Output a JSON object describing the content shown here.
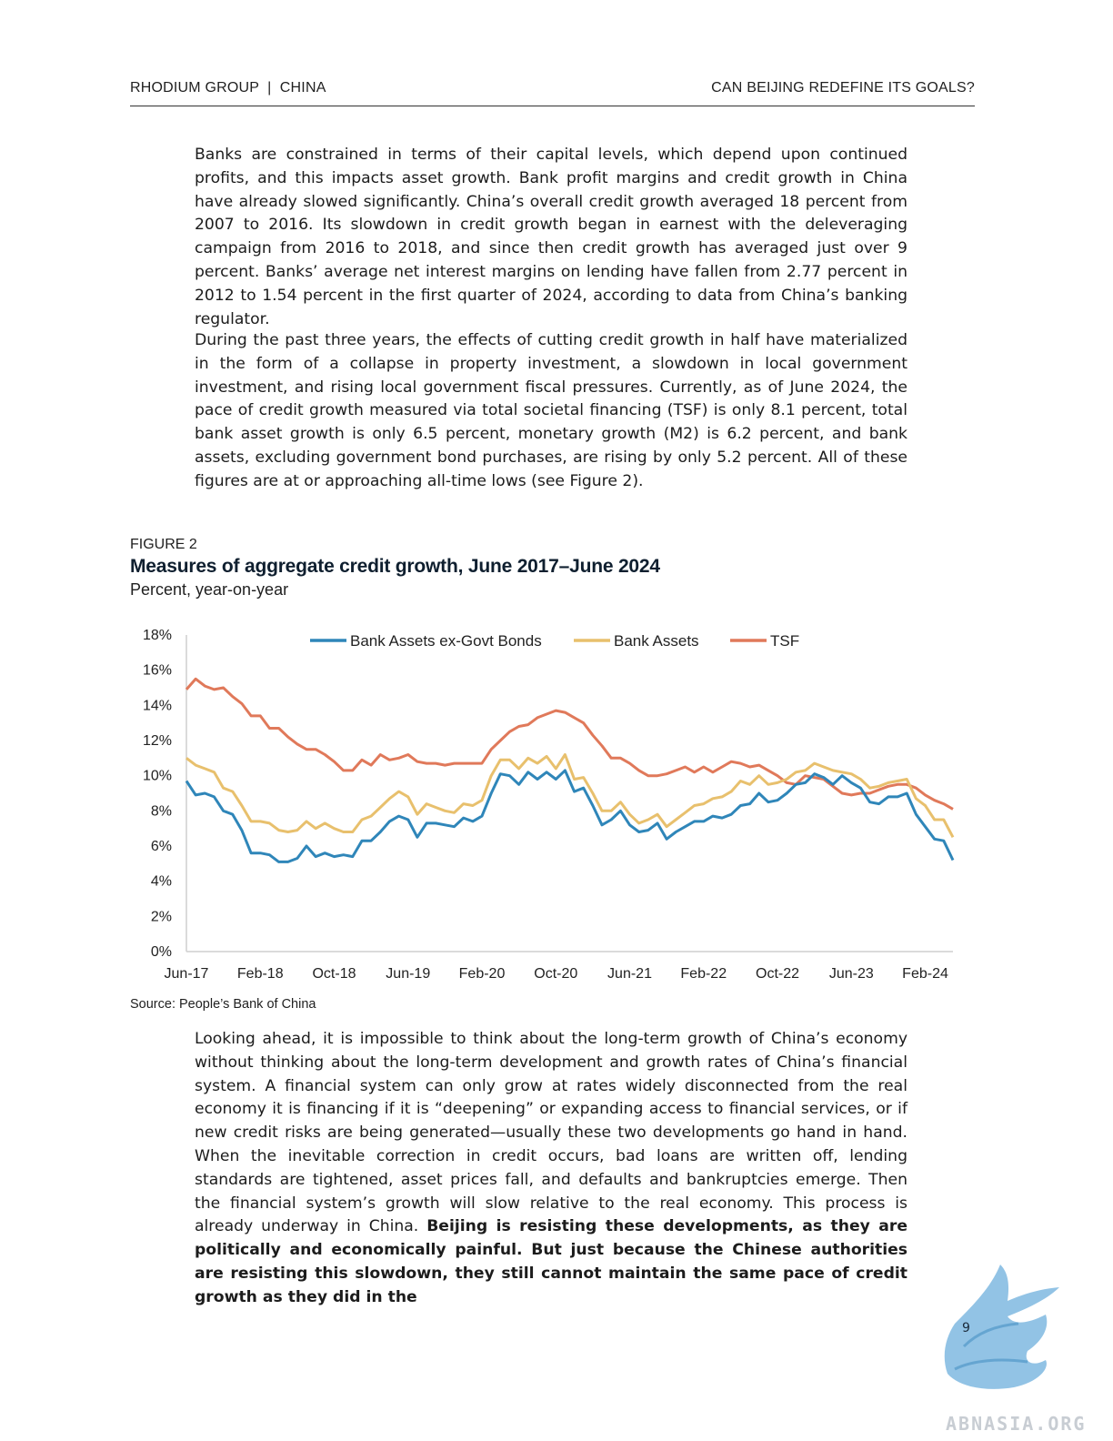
{
  "header": {
    "left": "RHODIUM GROUP  |  CHINA",
    "right": "CAN BEIJING REDEFINE ITS GOALS?"
  },
  "paragraphs": {
    "p1": "Banks are constrained in terms of their capital levels, which depend upon continued profits, and this impacts asset growth. Bank profit margins and credit growth in China have already slowed significantly. China’s overall credit growth averaged 18 percent from 2007 to 2016. Its slowdown in credit growth began in earnest with the deleveraging campaign from 2016 to 2018, and since then credit growth has averaged just over 9 percent. Banks’ average net interest margins on lending have fallen from 2.77 percent in 2012 to 1.54 percent in the first quarter of 2024, according to data from China’s banking regulator.",
    "p2": "During the past three years, the effects of cutting credit growth in half have materialized in the form of a collapse in property investment, a slowdown in local government investment, and rising local government fiscal pressures. Currently, as of June 2024, the pace of credit growth measured via total societal financing (TSF) is only 8.1 percent, total bank asset growth is only 6.5 percent, monetary growth (M2) is 6.2 percent, and bank assets, excluding government bond purchases, are rising by only 5.2 percent.  All of these figures are at or approaching all-time lows (see Figure 2).",
    "p3_normal": "Looking ahead, it is impossible to think about the long-term growth of China’s economy without thinking about the long-term development and growth rates of China’s financial system. A financial system can only grow at rates widely disconnected from the real economy it is financing if it is “deepening” or expanding access to financial services, or if new credit risks are being generated—usually these two developments go hand in hand. When the inevitable correction in credit occurs, bad loans are written off, lending standards are tightened, asset prices fall, and defaults and bankruptcies emerge. Then the financial system’s growth will slow relative to the real economy. This process is already underway in China. ",
    "p3_bold": "Beijing is resisting these developments, as they are politically and economically painful. But just because the Chinese authorities are resisting this slowdown, they still cannot maintain the same pace of credit growth as they did in the"
  },
  "figure": {
    "label": "FIGURE 2",
    "title": "Measures of aggregate credit growth, June 2017–June 2024",
    "subtitle": "Percent, year-on-year",
    "source": "Source: People’s Bank of China"
  },
  "chart_data": {
    "type": "line",
    "x_tick_labels": [
      "Jun-17",
      "Feb-18",
      "Oct-18",
      "Jun-19",
      "Feb-20",
      "Oct-20",
      "Jun-21",
      "Feb-22",
      "Oct-22",
      "Jun-23",
      "Feb-24"
    ],
    "x_start": "Jun-17",
    "x_end": "Jun-24",
    "ylim": [
      0,
      18
    ],
    "y_tick_labels": [
      "0%",
      "2%",
      "4%",
      "6%",
      "8%",
      "10%",
      "12%",
      "14%",
      "16%",
      "18%"
    ],
    "legend_position": "top-center",
    "grid": false,
    "series": [
      {
        "name": "Bank Assets ex-Govt Bonds",
        "color": "#2f86b9",
        "values": [
          9.7,
          8.9,
          9.0,
          8.8,
          8.0,
          7.8,
          6.9,
          5.6,
          5.6,
          5.5,
          5.1,
          5.1,
          5.3,
          6.0,
          5.4,
          5.6,
          5.4,
          5.5,
          5.4,
          6.3,
          6.3,
          6.8,
          7.4,
          7.7,
          7.5,
          6.5,
          7.3,
          7.3,
          7.2,
          7.1,
          7.6,
          7.4,
          7.7,
          9.0,
          10.1,
          10.0,
          9.5,
          10.2,
          9.8,
          10.2,
          9.8,
          10.3,
          9.1,
          9.3,
          8.3,
          7.2,
          7.5,
          8.0,
          7.2,
          6.8,
          6.9,
          7.3,
          6.4,
          6.8,
          7.1,
          7.4,
          7.4,
          7.7,
          7.6,
          7.8,
          8.3,
          8.4,
          9.0,
          8.5,
          8.6,
          9.0,
          9.5,
          9.6,
          10.1,
          9.9,
          9.5,
          10.0,
          9.6,
          9.3,
          8.5,
          8.4,
          8.8,
          8.8,
          9.0,
          7.8,
          7.1,
          6.4,
          6.3,
          5.2
        ]
      },
      {
        "name": "Bank Assets",
        "color": "#e8c06d",
        "values": [
          11.0,
          10.6,
          10.4,
          10.2,
          9.3,
          9.1,
          8.3,
          7.4,
          7.4,
          7.3,
          6.9,
          6.8,
          6.9,
          7.4,
          7.0,
          7.3,
          7.0,
          6.8,
          6.8,
          7.5,
          7.7,
          8.2,
          8.7,
          9.1,
          8.8,
          7.8,
          8.4,
          8.2,
          8.0,
          7.9,
          8.4,
          8.3,
          8.6,
          10.0,
          10.9,
          10.9,
          10.4,
          11.0,
          10.7,
          11.1,
          10.4,
          11.2,
          9.8,
          9.9,
          9.0,
          8.0,
          8.0,
          8.5,
          7.8,
          7.3,
          7.5,
          7.8,
          7.1,
          7.5,
          7.9,
          8.3,
          8.4,
          8.7,
          8.8,
          9.1,
          9.7,
          9.5,
          10.0,
          9.5,
          9.6,
          9.8,
          10.2,
          10.3,
          10.7,
          10.5,
          10.3,
          10.2,
          10.1,
          9.8,
          9.3,
          9.4,
          9.6,
          9.7,
          9.8,
          8.7,
          8.3,
          7.5,
          7.5,
          6.5
        ]
      },
      {
        "name": "TSF",
        "color": "#e0795a",
        "values": [
          14.9,
          15.5,
          15.1,
          14.9,
          15.0,
          14.5,
          14.1,
          13.4,
          13.4,
          12.7,
          12.7,
          12.2,
          11.8,
          11.5,
          11.5,
          11.2,
          10.8,
          10.3,
          10.3,
          10.9,
          10.6,
          11.2,
          10.9,
          11.0,
          11.2,
          10.8,
          10.7,
          10.7,
          10.6,
          10.7,
          10.7,
          10.7,
          10.7,
          11.5,
          12.0,
          12.5,
          12.8,
          12.9,
          13.3,
          13.5,
          13.7,
          13.6,
          13.3,
          13.0,
          12.3,
          11.7,
          11.0,
          11.0,
          10.7,
          10.3,
          10.0,
          10.0,
          10.1,
          10.3,
          10.5,
          10.2,
          10.5,
          10.2,
          10.5,
          10.8,
          10.7,
          10.5,
          10.6,
          10.3,
          10.0,
          9.6,
          9.5,
          10.0,
          9.9,
          9.8,
          9.4,
          9.0,
          8.9,
          9.0,
          9.0,
          9.2,
          9.4,
          9.5,
          9.5,
          9.3,
          8.9,
          8.6,
          8.4,
          8.1
        ]
      }
    ]
  },
  "page_number": "9",
  "watermark": "ABNASIA.ORG"
}
